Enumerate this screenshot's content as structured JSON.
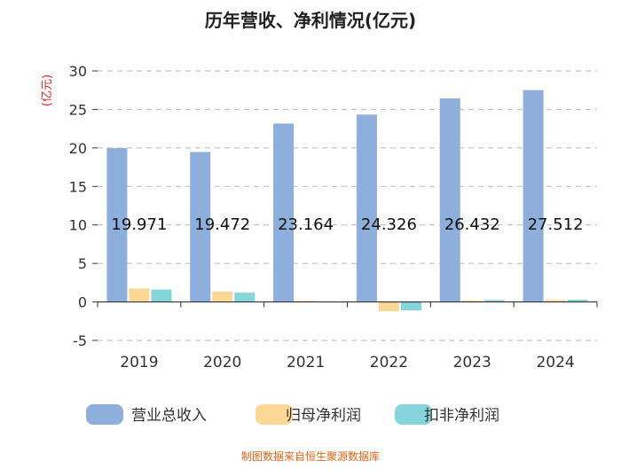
{
  "chart_data": {
    "type": "bar",
    "title": "历年营收、净利情况(亿元)",
    "ylabel": "(亿元)",
    "xlabel": "",
    "categories": [
      "2019",
      "2020",
      "2021",
      "2022",
      "2023",
      "2024"
    ],
    "ylim": [
      -5,
      30
    ],
    "yticks": [
      -5,
      0,
      5,
      10,
      15,
      20,
      25,
      30
    ],
    "grid": true,
    "legend_position": "bottom",
    "series": [
      {
        "name": "营业总收入",
        "color": "#8eaedb",
        "values": [
          19.971,
          19.472,
          23.164,
          24.326,
          26.432,
          27.512
        ],
        "labels": [
          "19.971",
          "19.472",
          "23.164",
          "24.326",
          "26.432",
          "27.512"
        ]
      },
      {
        "name": "归母净利润",
        "color": "#fcd795",
        "values": [
          1.75,
          1.35,
          0.15,
          -1.2,
          0.2,
          0.25
        ]
      },
      {
        "name": "扣非净利润",
        "color": "#86d5da",
        "values": [
          1.6,
          1.2,
          0.05,
          -1.1,
          0.25,
          0.3
        ]
      }
    ],
    "axis_color": "#333333",
    "ylabel_color": "#e02020"
  },
  "footer": {
    "source": "制图数据来自恒生聚源数据库",
    "color": "#e8661a"
  }
}
